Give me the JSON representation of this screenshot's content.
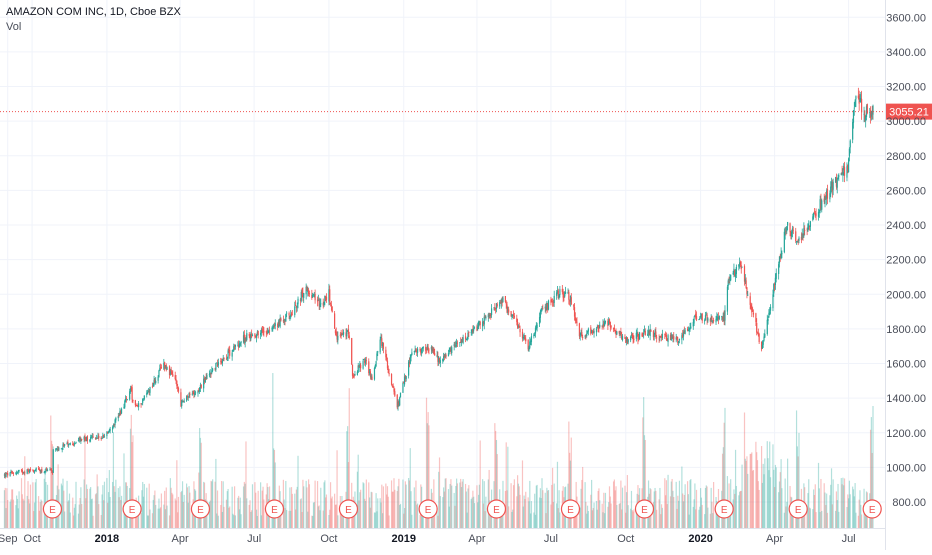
{
  "legend": {
    "title": "AMAZON COM INC, 1D, Cboe BZX",
    "volume_label": "Vol"
  },
  "colors": {
    "up": "#26a69a",
    "down": "#ef5350",
    "grid": "#f0f3fa",
    "axis_text": "#4a4e59",
    "earnings": "#ef5350"
  },
  "chart_data": {
    "type": "candlestick",
    "title": "AMAZON COM INC, 1D, Cboe BZX",
    "symbol": "AMAZON COM INC",
    "interval": "1D",
    "exchange": "Cboe BZX",
    "last_price": "3055.21",
    "ylim": [
      650,
      3700
    ],
    "y_ticks": [
      "3600.00",
      "3400.00",
      "3200.00",
      "3000.00",
      "2800.00",
      "2600.00",
      "2400.00",
      "2200.00",
      "2000.00",
      "1800.00",
      "1600.00",
      "1400.00",
      "1200.00",
      "1000.00",
      "800.00"
    ],
    "x_ticks": [
      "Sep",
      "Oct",
      "2018",
      "Apr",
      "Jul",
      "Oct",
      "2019",
      "Apr",
      "Jul",
      "Oct",
      "2020",
      "Apr",
      "Jul"
    ],
    "xlim": [
      "2017-08-25",
      "2020-07-31"
    ],
    "earnings_marker": "E",
    "earnings_dates": [
      "2017-10-26",
      "2018-02-01",
      "2018-04-26",
      "2018-07-26",
      "2018-10-25",
      "2019-01-31",
      "2019-04-25",
      "2019-07-25",
      "2019-10-24",
      "2020-01-30",
      "2020-04-30",
      "2020-07-30"
    ],
    "price_path": [
      [
        "2017-08-28",
        955
      ],
      [
        "2017-09-15",
        975
      ],
      [
        "2017-10-05",
        985
      ],
      [
        "2017-10-26",
        975
      ],
      [
        "2017-10-27",
        1100
      ],
      [
        "2017-11-15",
        1130
      ],
      [
        "2017-12-01",
        1165
      ],
      [
        "2017-12-29",
        1175
      ],
      [
        "2018-01-15",
        1300
      ],
      [
        "2018-01-31",
        1450
      ],
      [
        "2018-02-01",
        1390
      ],
      [
        "2018-02-08",
        1350
      ],
      [
        "2018-03-01",
        1500
      ],
      [
        "2018-03-12",
        1600
      ],
      [
        "2018-03-27",
        1495
      ],
      [
        "2018-04-02",
        1370
      ],
      [
        "2018-04-26",
        1470
      ],
      [
        "2018-05-15",
        1590
      ],
      [
        "2018-06-20",
        1750
      ],
      [
        "2018-07-26",
        1810
      ],
      [
        "2018-08-15",
        1890
      ],
      [
        "2018-09-04",
        2040
      ],
      [
        "2018-09-20",
        1930
      ],
      [
        "2018-10-01",
        2010
      ],
      [
        "2018-10-10",
        1750
      ],
      [
        "2018-10-25",
        1780
      ],
      [
        "2018-10-30",
        1530
      ],
      [
        "2018-11-15",
        1620
      ],
      [
        "2018-11-23",
        1500
      ],
      [
        "2018-12-03",
        1760
      ],
      [
        "2018-12-24",
        1345
      ],
      [
        "2019-01-10",
        1650
      ],
      [
        "2019-01-31",
        1700
      ],
      [
        "2019-02-15",
        1610
      ],
      [
        "2019-03-01",
        1680
      ],
      [
        "2019-03-22",
        1760
      ],
      [
        "2019-04-25",
        1925
      ],
      [
        "2019-05-03",
        1960
      ],
      [
        "2019-06-03",
        1700
      ],
      [
        "2019-06-20",
        1900
      ],
      [
        "2019-07-11",
        2010
      ],
      [
        "2019-07-25",
        1985
      ],
      [
        "2019-08-05",
        1765
      ],
      [
        "2019-09-10",
        1830
      ],
      [
        "2019-10-01",
        1730
      ],
      [
        "2019-10-24",
        1775
      ],
      [
        "2019-10-31",
        1780
      ],
      [
        "2019-11-15",
        1755
      ],
      [
        "2019-12-05",
        1740
      ],
      [
        "2019-12-27",
        1870
      ],
      [
        "2020-01-15",
        1865
      ],
      [
        "2020-01-30",
        1870
      ],
      [
        "2020-02-03",
        2060
      ],
      [
        "2020-02-19",
        2180
      ],
      [
        "2020-03-02",
        1950
      ],
      [
        "2020-03-16",
        1690
      ],
      [
        "2020-03-25",
        1900
      ],
      [
        "2020-04-16",
        2400
      ],
      [
        "2020-05-01",
        2300
      ],
      [
        "2020-05-20",
        2470
      ],
      [
        "2020-06-10",
        2620
      ],
      [
        "2020-06-30",
        2740
      ],
      [
        "2020-07-10",
        3180
      ],
      [
        "2020-07-20",
        3050
      ],
      [
        "2020-07-31",
        3055
      ]
    ]
  }
}
